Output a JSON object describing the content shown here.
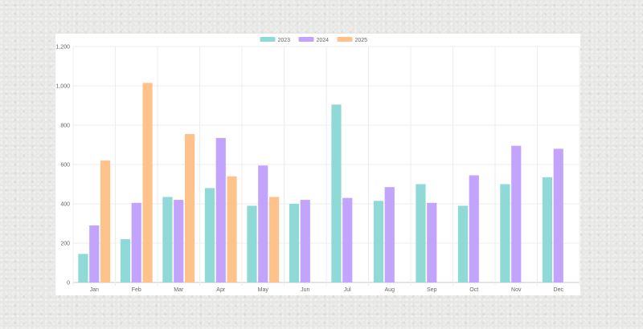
{
  "chart_data": {
    "type": "bar",
    "categories": [
      "Jan",
      "Feb",
      "Mar",
      "Apr",
      "May",
      "Jun",
      "Jul",
      "Aug",
      "Sep",
      "Oct",
      "Nov",
      "Dec"
    ],
    "series": [
      {
        "name": "2023",
        "color": "#8fd9d6",
        "values": [
          145,
          220,
          435,
          480,
          390,
          400,
          905,
          415,
          500,
          390,
          500,
          535
        ]
      },
      {
        "name": "2024",
        "color": "#c3a4fc",
        "values": [
          290,
          405,
          420,
          735,
          595,
          420,
          430,
          485,
          405,
          545,
          695,
          680
        ]
      },
      {
        "name": "2025",
        "color": "#ffc28a",
        "values": [
          620,
          1015,
          755,
          540,
          435,
          null,
          null,
          null,
          null,
          null,
          null,
          null
        ]
      }
    ],
    "y_ticks": [
      "0",
      "200",
      "400",
      "600",
      "800",
      "1,000",
      "1,200"
    ],
    "ylim": [
      0,
      1200
    ],
    "grid": true,
    "legend_position": "top-center"
  }
}
